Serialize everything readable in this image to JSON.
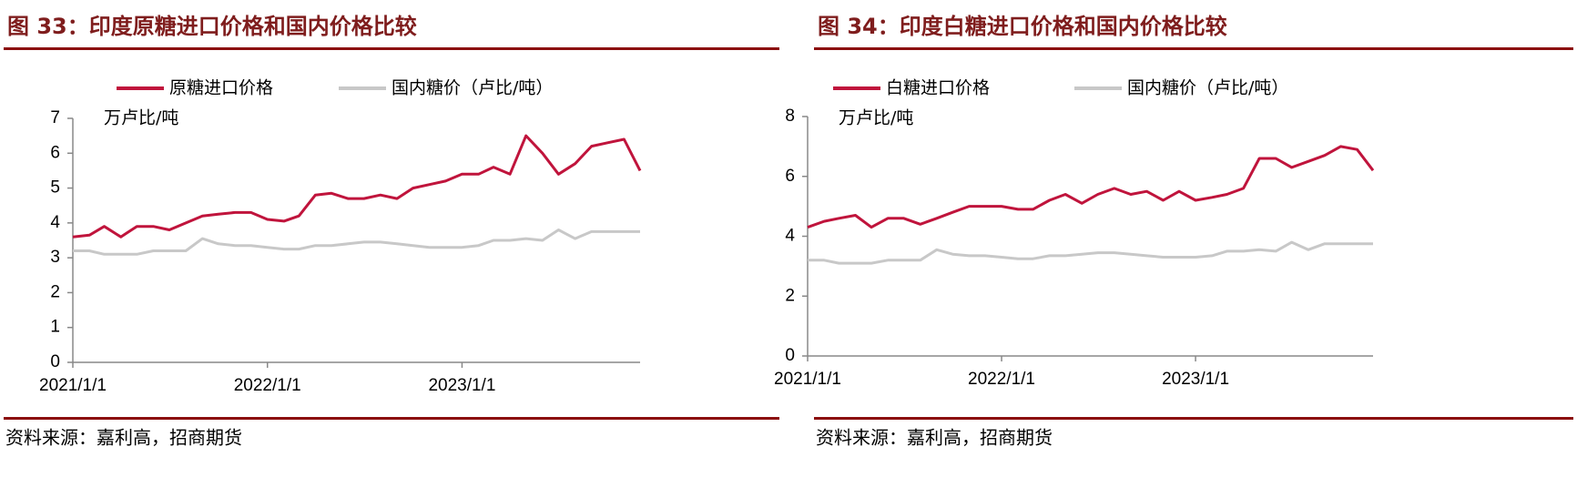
{
  "chart_data": [
    {
      "type": "line",
      "title": "图 33：印度原糖进口价格和国内价格比较",
      "y_label": "万卢比/吨",
      "source": "资料来源：嘉利高，招商期货",
      "x": [
        "2021/1/1",
        "2021/2/1",
        "2021/3/1",
        "2021/4/1",
        "2021/5/1",
        "2021/6/1",
        "2021/7/1",
        "2021/8/1",
        "2021/9/1",
        "2021/10/1",
        "2021/11/1",
        "2021/12/1",
        "2022/1/1",
        "2022/2/1",
        "2022/3/1",
        "2022/4/1",
        "2022/5/1",
        "2022/6/1",
        "2022/7/1",
        "2022/8/1",
        "2022/9/1",
        "2022/10/1",
        "2022/11/1",
        "2022/12/1",
        "2023/1/1",
        "2023/2/1",
        "2023/3/1",
        "2023/4/1",
        "2023/5/1",
        "2023/6/1",
        "2023/7/1",
        "2023/8/1",
        "2023/9/1",
        "2023/10/1",
        "2023/11/1",
        "2023/12/1"
      ],
      "series": [
        {
          "name": "原糖进口价格",
          "color": "#c0143c",
          "values": [
            3.6,
            3.65,
            3.9,
            3.6,
            3.9,
            3.9,
            3.8,
            4.0,
            4.2,
            4.25,
            4.3,
            4.3,
            4.1,
            4.05,
            4.2,
            4.8,
            4.85,
            4.7,
            4.7,
            4.8,
            4.7,
            5.0,
            5.1,
            5.2,
            5.4,
            5.4,
            5.6,
            5.4,
            6.5,
            6.0,
            5.4,
            5.7,
            6.2,
            6.3,
            6.4,
            5.5
          ]
        },
        {
          "name": "国内糖价（卢比/吨）",
          "color": "#c8c8c8",
          "values": [
            3.2,
            3.2,
            3.1,
            3.1,
            3.1,
            3.2,
            3.2,
            3.2,
            3.55,
            3.4,
            3.35,
            3.35,
            3.3,
            3.25,
            3.25,
            3.35,
            3.35,
            3.4,
            3.45,
            3.45,
            3.4,
            3.35,
            3.3,
            3.3,
            3.3,
            3.35,
            3.5,
            3.5,
            3.55,
            3.5,
            3.8,
            3.55,
            3.75,
            3.75,
            3.75,
            3.75
          ]
        }
      ],
      "xlim": [
        "2021/1/1",
        "2023/12/1"
      ],
      "xticks": [
        "2021/1/1",
        "2022/1/1",
        "2023/1/1"
      ],
      "ylim": [
        0,
        7
      ],
      "yticks": [
        0,
        1,
        2,
        3,
        4,
        5,
        6,
        7
      ],
      "grid": false
    },
    {
      "type": "line",
      "title": "图 34：印度白糖进口价格和国内价格比较",
      "y_label": "万卢比/吨",
      "source": "资料来源：嘉利高，招商期货",
      "x": [
        "2021/1/1",
        "2021/2/1",
        "2021/3/1",
        "2021/4/1",
        "2021/5/1",
        "2021/6/1",
        "2021/7/1",
        "2021/8/1",
        "2021/9/1",
        "2021/10/1",
        "2021/11/1",
        "2021/12/1",
        "2022/1/1",
        "2022/2/1",
        "2022/3/1",
        "2022/4/1",
        "2022/5/1",
        "2022/6/1",
        "2022/7/1",
        "2022/8/1",
        "2022/9/1",
        "2022/10/1",
        "2022/11/1",
        "2022/12/1",
        "2023/1/1",
        "2023/2/1",
        "2023/3/1",
        "2023/4/1",
        "2023/5/1",
        "2023/6/1",
        "2023/7/1",
        "2023/8/1",
        "2023/9/1",
        "2023/10/1",
        "2023/11/1",
        "2023/12/1"
      ],
      "series": [
        {
          "name": "白糖进口价格",
          "color": "#c0143c",
          "values": [
            4.3,
            4.5,
            4.6,
            4.7,
            4.3,
            4.6,
            4.6,
            4.4,
            4.6,
            4.8,
            5.0,
            5.0,
            5.0,
            4.9,
            4.9,
            5.2,
            5.4,
            5.1,
            5.4,
            5.6,
            5.4,
            5.5,
            5.2,
            5.5,
            5.2,
            5.3,
            5.4,
            5.6,
            6.6,
            6.6,
            6.3,
            6.5,
            6.7,
            7.0,
            6.9,
            6.2
          ]
        },
        {
          "name": "国内糖价（卢比/吨）",
          "color": "#c8c8c8",
          "values": [
            3.2,
            3.2,
            3.1,
            3.1,
            3.1,
            3.2,
            3.2,
            3.2,
            3.55,
            3.4,
            3.35,
            3.35,
            3.3,
            3.25,
            3.25,
            3.35,
            3.35,
            3.4,
            3.45,
            3.45,
            3.4,
            3.35,
            3.3,
            3.3,
            3.3,
            3.35,
            3.5,
            3.5,
            3.55,
            3.5,
            3.8,
            3.55,
            3.75,
            3.75,
            3.75,
            3.75
          ]
        }
      ],
      "xlim": [
        "2021/1/1",
        "2023/12/1"
      ],
      "xticks": [
        "2021/1/1",
        "2022/1/1",
        "2023/1/1"
      ],
      "ylim": [
        0,
        8
      ],
      "yticks": [
        0,
        2,
        4,
        6,
        8
      ],
      "grid": false
    }
  ]
}
